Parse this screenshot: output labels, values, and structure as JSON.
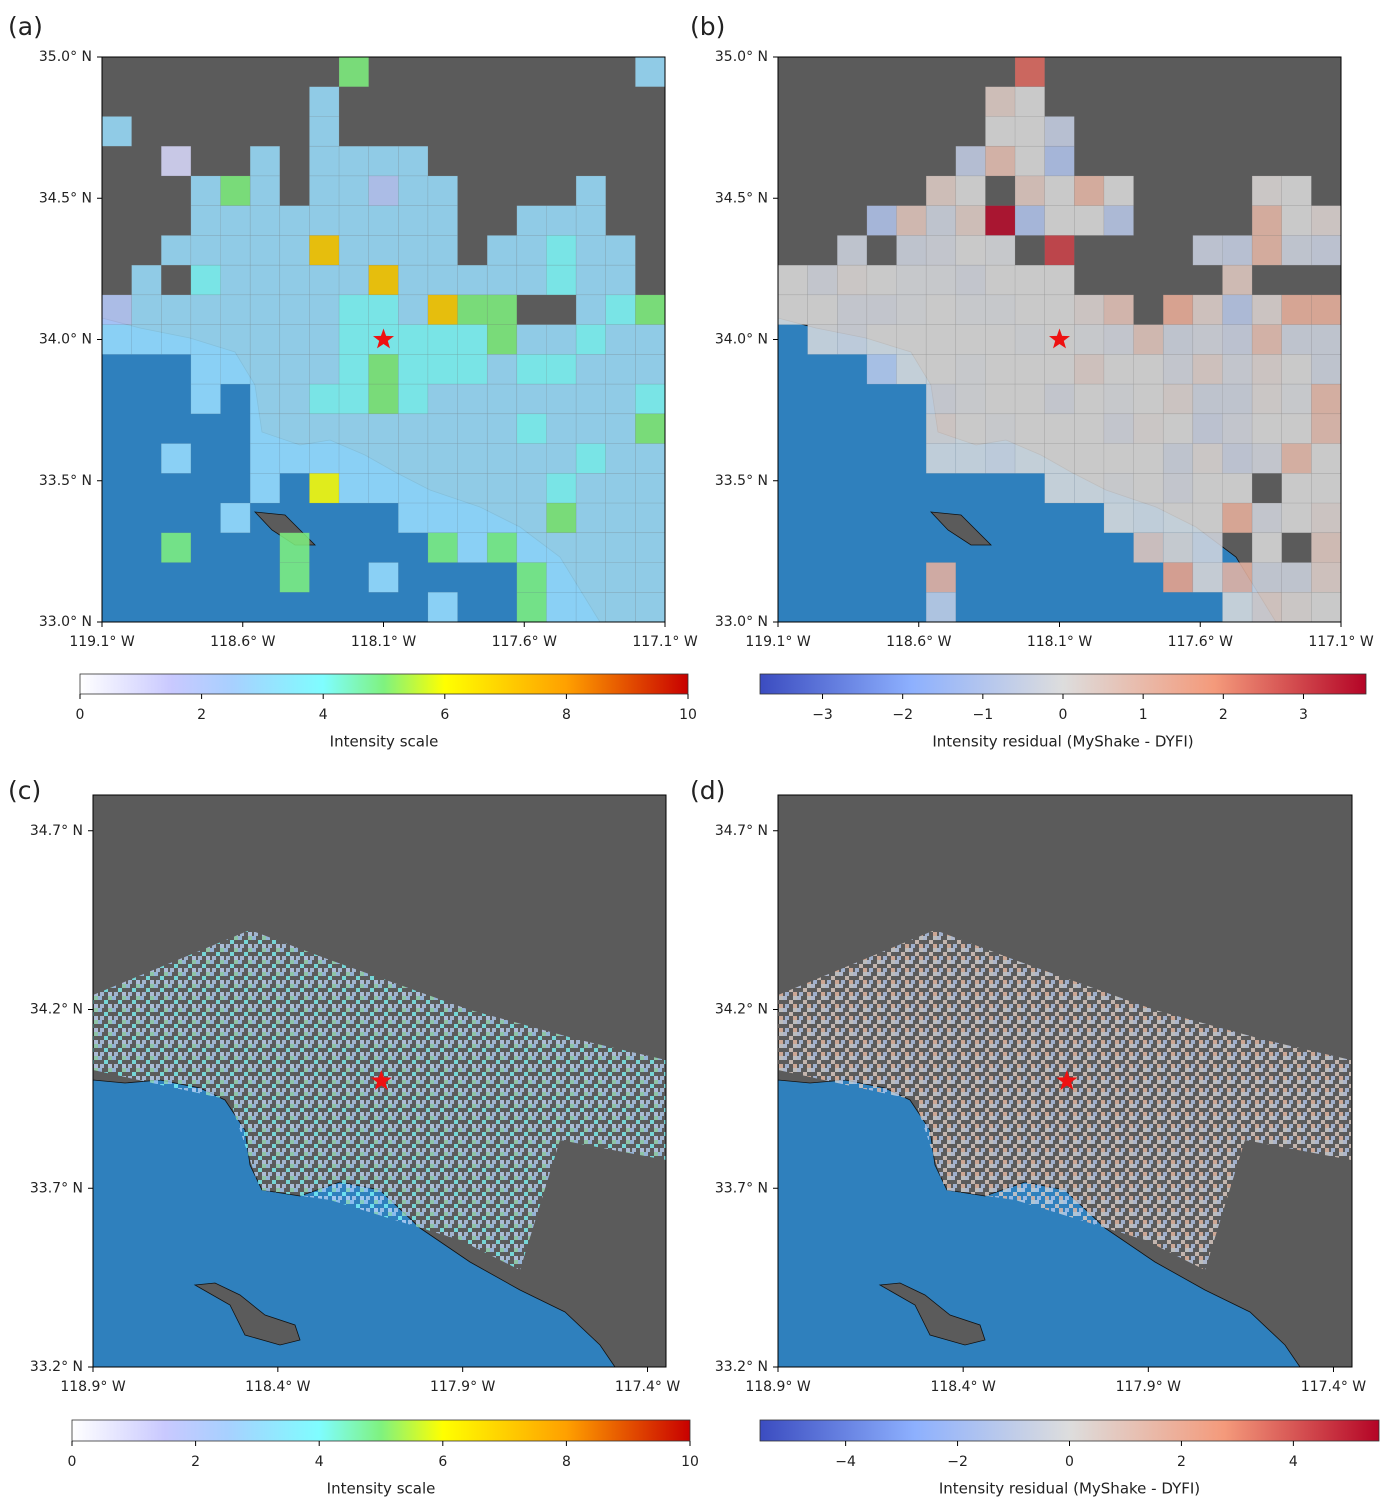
{
  "chart_data": [
    {
      "type": "heatmap",
      "panel_label": "(a)",
      "colormap": "intensity",
      "xlim": [
        -119.1,
        -117.1
      ],
      "ylim": [
        33.0,
        35.0
      ],
      "xticks": [
        {
          "value": -119.1,
          "label": "119.1° W"
        },
        {
          "value": -118.6,
          "label": "118.6° W"
        },
        {
          "value": -118.1,
          "label": "118.1° W"
        },
        {
          "value": -117.6,
          "label": "117.6° W"
        },
        {
          "value": -117.1,
          "label": "117.1° W"
        }
      ],
      "yticks": [
        {
          "value": 33.0,
          "label": "33.0° N"
        },
        {
          "value": 33.5,
          "label": "33.5° N"
        },
        {
          "value": 34.0,
          "label": "34.0° N"
        },
        {
          "value": 34.5,
          "label": "34.5° N"
        },
        {
          "value": 35.0,
          "label": "35.0° N"
        }
      ],
      "epicenter": {
        "lon": -118.1,
        "lat": 34.0
      },
      "values": [
        [
          null,
          null,
          null,
          null,
          null,
          null,
          null,
          null,
          5,
          null,
          null,
          null,
          null,
          null,
          null,
          null,
          null,
          null,
          3
        ],
        [
          null,
          null,
          null,
          null,
          null,
          null,
          null,
          3,
          null,
          null,
          null,
          null,
          null,
          null,
          null,
          null,
          null,
          null,
          null
        ],
        [
          3,
          null,
          null,
          null,
          null,
          null,
          null,
          3,
          null,
          null,
          null,
          null,
          null,
          null,
          null,
          null,
          null,
          null,
          null
        ],
        [
          null,
          null,
          1,
          null,
          null,
          3,
          null,
          3,
          3,
          3,
          3,
          null,
          null,
          null,
          null,
          null,
          null,
          null,
          null
        ],
        [
          null,
          null,
          null,
          3,
          5,
          3,
          null,
          3,
          3,
          2,
          3,
          3,
          null,
          null,
          null,
          null,
          3,
          null,
          null
        ],
        [
          null,
          null,
          null,
          3,
          3,
          3,
          3,
          3,
          3,
          3,
          3,
          3,
          null,
          null,
          3,
          3,
          3,
          null,
          null
        ],
        [
          null,
          null,
          3,
          3,
          3,
          3,
          3,
          7,
          3,
          3,
          3,
          3,
          null,
          3,
          3,
          4,
          3,
          3,
          null
        ],
        [
          null,
          3,
          null,
          4,
          3,
          3,
          3,
          3,
          3,
          7,
          3,
          3,
          3,
          3,
          3,
          4,
          3,
          3,
          null
        ],
        [
          2,
          3,
          3,
          3,
          3,
          3,
          3,
          3,
          4,
          4,
          3,
          7,
          5,
          5,
          null,
          null,
          3,
          4,
          5
        ],
        [
          3,
          3,
          3,
          3,
          3,
          3,
          3,
          3,
          4,
          4,
          4,
          4,
          4,
          5,
          3,
          3,
          4,
          3,
          3
        ],
        [
          null,
          null,
          null,
          3,
          3,
          3,
          3,
          3,
          4,
          5,
          4,
          4,
          4,
          3,
          4,
          4,
          3,
          3,
          3
        ],
        [
          null,
          null,
          null,
          3,
          null,
          3,
          3,
          4,
          4,
          5,
          4,
          3,
          3,
          3,
          3,
          3,
          3,
          3,
          4
        ],
        [
          null,
          null,
          null,
          null,
          null,
          3,
          3,
          3,
          3,
          3,
          3,
          3,
          3,
          3,
          4,
          3,
          3,
          3,
          5
        ],
        [
          null,
          null,
          3,
          null,
          null,
          3,
          3,
          3,
          3,
          3,
          3,
          3,
          3,
          3,
          3,
          3,
          4,
          3,
          3
        ],
        [
          null,
          null,
          null,
          null,
          null,
          3,
          null,
          6,
          3,
          3,
          3,
          3,
          3,
          3,
          3,
          4,
          3,
          3,
          3
        ],
        [
          null,
          null,
          null,
          null,
          3,
          null,
          null,
          null,
          null,
          null,
          3,
          3,
          3,
          3,
          3,
          5,
          3,
          3,
          3
        ],
        [
          null,
          null,
          5,
          null,
          null,
          null,
          5,
          null,
          null,
          null,
          null,
          5,
          3,
          5,
          3,
          3,
          3,
          3,
          3
        ],
        [
          null,
          null,
          null,
          null,
          null,
          null,
          5,
          null,
          null,
          3,
          null,
          null,
          null,
          null,
          5,
          3,
          3,
          3,
          3
        ],
        [
          null,
          null,
          null,
          null,
          null,
          null,
          null,
          null,
          null,
          null,
          null,
          3,
          null,
          null,
          5,
          3,
          3,
          3,
          3
        ]
      ],
      "colorbar": {
        "label": "Intensity scale",
        "lim": [
          0,
          10
        ],
        "ticks": [
          0,
          2,
          4,
          6,
          8,
          10
        ]
      }
    },
    {
      "type": "heatmap",
      "panel_label": "(b)",
      "colormap": "coolwarm",
      "xlim": [
        -119.1,
        -117.1
      ],
      "ylim": [
        33.0,
        35.0
      ],
      "xticks": [
        {
          "value": -119.1,
          "label": "119.1° W"
        },
        {
          "value": -118.6,
          "label": "118.6° W"
        },
        {
          "value": -118.1,
          "label": "118.1° W"
        },
        {
          "value": -117.6,
          "label": "117.6° W"
        },
        {
          "value": -117.1,
          "label": "117.1° W"
        }
      ],
      "yticks": [
        {
          "value": 33.0,
          "label": "33.0° N"
        },
        {
          "value": 33.5,
          "label": "33.5° N"
        },
        {
          "value": 34.0,
          "label": "34.0° N"
        },
        {
          "value": 34.5,
          "label": "34.5° N"
        },
        {
          "value": 35.0,
          "label": "35.0° N"
        }
      ],
      "epicenter": {
        "lon": -118.1,
        "lat": 34.0
      },
      "values": [
        [
          null,
          null,
          null,
          null,
          null,
          null,
          null,
          null,
          2.5,
          null,
          null,
          null,
          null,
          null,
          null,
          null,
          null,
          null,
          null
        ],
        [
          null,
          null,
          null,
          null,
          null,
          null,
          null,
          0.4,
          0,
          null,
          null,
          null,
          null,
          null,
          null,
          null,
          null,
          null,
          null
        ],
        [
          null,
          null,
          null,
          null,
          null,
          null,
          null,
          0,
          0,
          -0.5,
          null,
          null,
          null,
          null,
          null,
          null,
          null,
          null,
          null
        ],
        [
          null,
          null,
          null,
          null,
          null,
          null,
          -0.6,
          0.8,
          0,
          -1,
          null,
          null,
          null,
          null,
          null,
          null,
          null,
          null,
          null
        ],
        [
          null,
          null,
          null,
          null,
          null,
          0.4,
          0,
          null,
          0.5,
          0,
          1,
          0,
          null,
          null,
          null,
          null,
          0.1,
          0,
          null
        ],
        [
          null,
          null,
          null,
          -1,
          0.6,
          -0.3,
          0.4,
          3.7,
          -1,
          0,
          0,
          -0.8,
          null,
          null,
          null,
          null,
          1,
          0,
          0.2
        ],
        [
          null,
          null,
          -0.3,
          null,
          -0.3,
          -0.2,
          0,
          -0.1,
          null,
          3,
          null,
          null,
          null,
          null,
          -0.4,
          -0.5,
          1,
          -0.3,
          -0.4
        ],
        [
          0,
          -0.2,
          0.1,
          0,
          -0.1,
          -0.1,
          -0.2,
          0,
          0,
          0,
          null,
          null,
          null,
          null,
          null,
          0.5,
          null,
          null,
          null
        ],
        [
          0,
          0,
          -0.2,
          -0.2,
          -0.1,
          0,
          -0.1,
          -0.1,
          0,
          0,
          0.2,
          0.7,
          null,
          1.3,
          0.3,
          -0.8,
          0.2,
          1.2,
          1.2
        ],
        [
          null,
          -0.1,
          -0.2,
          0,
          0,
          0,
          0,
          0,
          -0.1,
          0,
          -0.1,
          -0.2,
          0.6,
          -0.3,
          -0.2,
          -0.4,
          0.8,
          -0.3,
          -0.3
        ],
        [
          null,
          null,
          null,
          -0.8,
          0,
          0,
          -0.1,
          0,
          0,
          0,
          0.3,
          0,
          0,
          -0.2,
          0.3,
          -0.2,
          0.2,
          0,
          -0.3
        ],
        [
          null,
          null,
          null,
          null,
          null,
          -0.2,
          -0.1,
          0,
          0,
          -0.2,
          0,
          -0.1,
          0,
          0.2,
          -0.3,
          -0.3,
          0.1,
          -0.1,
          0.9
        ],
        [
          null,
          null,
          null,
          null,
          null,
          0.2,
          0,
          -0.1,
          0,
          0,
          0,
          -0.2,
          0.1,
          0,
          -0.4,
          -0.2,
          0,
          0,
          0.8
        ],
        [
          null,
          null,
          null,
          null,
          null,
          -0.1,
          -0.1,
          -0.2,
          0,
          0,
          0,
          0,
          0,
          -0.3,
          0.1,
          -0.4,
          -0.2,
          0.9,
          0
        ],
        [
          null,
          null,
          null,
          null,
          null,
          null,
          null,
          null,
          null,
          0,
          0,
          -0.1,
          0,
          -0.2,
          0,
          0,
          null,
          0,
          0
        ],
        [
          null,
          null,
          null,
          null,
          null,
          null,
          null,
          null,
          null,
          null,
          null,
          0,
          -0.1,
          0,
          0,
          1.2,
          -0.2,
          0,
          0.2
        ],
        [
          null,
          null,
          null,
          null,
          null,
          null,
          null,
          null,
          null,
          null,
          null,
          null,
          0.6,
          0.2,
          -0.2,
          null,
          0,
          null,
          0.5
        ],
        [
          null,
          null,
          null,
          null,
          null,
          1.2,
          null,
          null,
          null,
          null,
          null,
          null,
          null,
          1.6,
          0.1,
          1.1,
          -0.3,
          -0.3,
          0.3
        ],
        [
          null,
          null,
          null,
          null,
          null,
          -0.6,
          null,
          null,
          null,
          null,
          null,
          null,
          null,
          null,
          null,
          0,
          0.3,
          0.1,
          0
        ]
      ],
      "colorbar": {
        "label": "Intensity residual (MyShake - DYFI)",
        "lim": [
          -3.78,
          3.78
        ],
        "ticks": [
          {
            "value": -3,
            "label": "−3"
          },
          {
            "value": -2,
            "label": "−2"
          },
          {
            "value": -1,
            "label": "−1"
          },
          0,
          1,
          2,
          3
        ]
      }
    },
    {
      "type": "map",
      "panel_label": "(c)",
      "colormap": "intensity",
      "xlim": [
        -118.9,
        -117.35
      ],
      "ylim": [
        33.2,
        34.8
      ],
      "xticks": [
        {
          "value": -118.9,
          "label": "118.9° W"
        },
        {
          "value": -118.4,
          "label": "118.4° W"
        },
        {
          "value": -117.9,
          "label": "117.9° W"
        },
        {
          "value": -117.4,
          "label": "117.4° W"
        }
      ],
      "yticks": [
        {
          "value": 33.2,
          "label": "33.2° N"
        },
        {
          "value": 33.7,
          "label": "33.7° N"
        },
        {
          "value": 34.2,
          "label": "34.2° N"
        },
        {
          "value": 34.7,
          "label": "34.7° N"
        }
      ],
      "epicenter": {
        "lon": -118.12,
        "lat": 34.0
      },
      "colorbar": {
        "label": "Intensity scale",
        "lim": [
          0,
          10
        ],
        "ticks": [
          0,
          2,
          4,
          6,
          8,
          10
        ]
      }
    },
    {
      "type": "map",
      "panel_label": "(d)",
      "colormap": "coolwarm",
      "xlim": [
        -118.9,
        -117.35
      ],
      "ylim": [
        33.2,
        34.8
      ],
      "xticks": [
        {
          "value": -118.9,
          "label": "118.9° W"
        },
        {
          "value": -118.4,
          "label": "118.4° W"
        },
        {
          "value": -117.9,
          "label": "117.9° W"
        },
        {
          "value": -117.4,
          "label": "117.4° W"
        }
      ],
      "yticks": [
        {
          "value": 33.2,
          "label": "33.2° N"
        },
        {
          "value": 33.7,
          "label": "33.7° N"
        },
        {
          "value": 34.2,
          "label": "34.2° N"
        },
        {
          "value": 34.7,
          "label": "34.7° N"
        }
      ],
      "epicenter": {
        "lon": -118.12,
        "lat": 34.0
      },
      "colorbar": {
        "label": "Intensity residual (MyShake - DYFI)",
        "lim": [
          -5.53,
          5.53
        ],
        "ticks": [
          {
            "value": -4,
            "label": "−4"
          },
          {
            "value": -2,
            "label": "−2"
          },
          0,
          2,
          4
        ]
      }
    }
  ]
}
